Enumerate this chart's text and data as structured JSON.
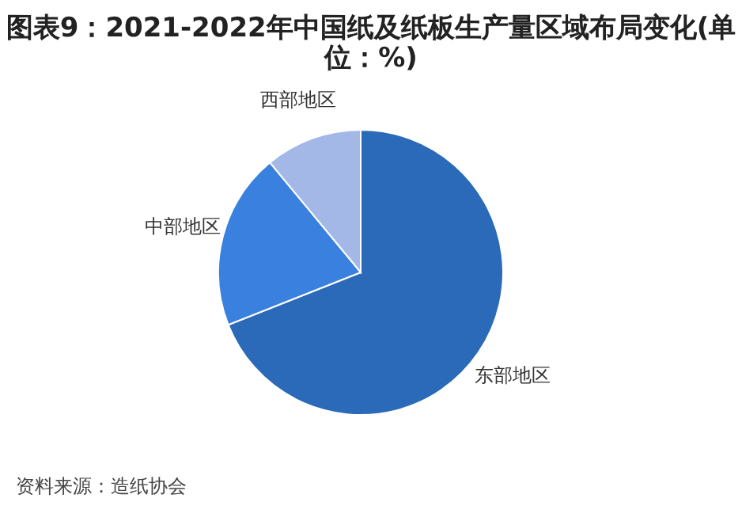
{
  "chart_data": {
    "type": "pie",
    "title": "图表9：2021-2022年中国纸及纸板生产量区域布局变化(单位：%)",
    "categories": [
      "东部地区",
      "中部地区",
      "西部地区"
    ],
    "values": [
      69,
      20,
      11
    ],
    "colors": [
      "#2b6ab8",
      "#3a80de",
      "#a4b8e8"
    ],
    "annotations": [
      "资料来源：造纸协会"
    ]
  }
}
